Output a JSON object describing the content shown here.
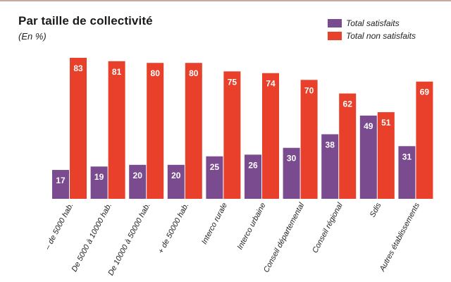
{
  "chart_data": {
    "type": "bar",
    "title": "Par taille de collectivité",
    "subtitle": "(En %)",
    "categories": [
      "– de 5000 hab.",
      "De 5000 à 10000 hab.",
      "De 10000 à 50000 hab.",
      "+ de 50000 hab.",
      "Interco rurale",
      "Interco urbaine",
      "Conseil départemental",
      "Conseil régional",
      "Sdis",
      "Autres établissements"
    ],
    "series": [
      {
        "name": "Total satisfaits",
        "color": "#7b4b8f",
        "values": [
          17,
          19,
          20,
          20,
          25,
          26,
          30,
          38,
          49,
          31
        ]
      },
      {
        "name": "Total non satisfaits",
        "color": "#e8402a",
        "values": [
          83,
          81,
          80,
          80,
          75,
          74,
          70,
          62,
          51,
          69
        ]
      }
    ],
    "ylim": [
      0,
      100
    ],
    "grid": false,
    "legend": "top-right",
    "xlabel": "",
    "ylabel": ""
  }
}
